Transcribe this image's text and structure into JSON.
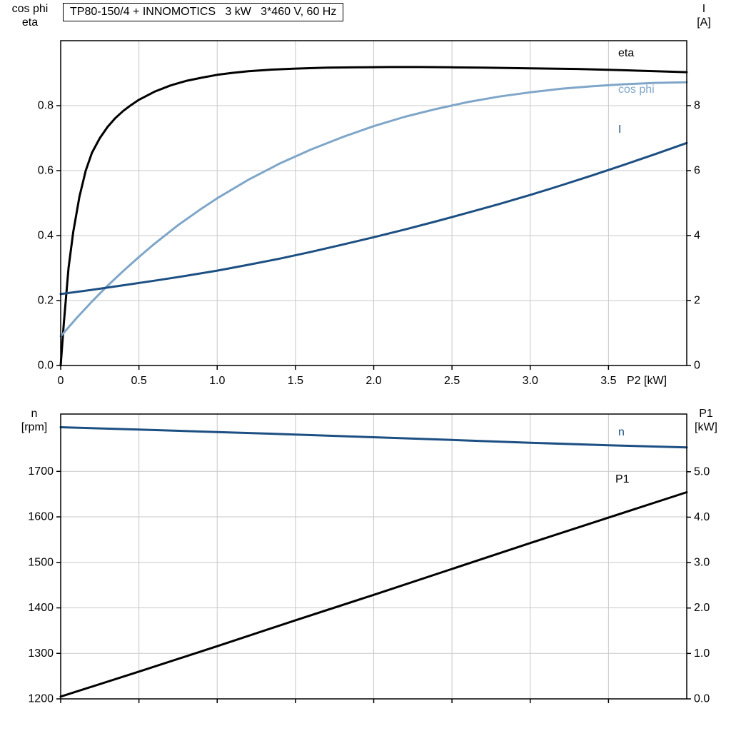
{
  "chart_data": [
    {
      "type": "line",
      "title": "TP80-150/4 + INNOMOTICS   3 kW   3*460 V, 60 Hz",
      "xlabel": "P2 [kW]",
      "ylabel_left_lines": [
        "cos phi",
        "eta"
      ],
      "ylabel_right_lines": [
        "I",
        "[A]"
      ],
      "xlim": [
        0,
        4
      ],
      "ylim_left": [
        0,
        1.0
      ],
      "ylim_right": [
        0,
        10
      ],
      "grid": true,
      "x_ticks": [
        {
          "v": 0,
          "label": "0"
        },
        {
          "v": 0.5,
          "label": "0.5"
        },
        {
          "v": 1.0,
          "label": "1.0"
        },
        {
          "v": 1.5,
          "label": "1.5"
        },
        {
          "v": 2.0,
          "label": "2.0"
        },
        {
          "v": 2.5,
          "label": "2.5"
        },
        {
          "v": 3.0,
          "label": "3.0"
        },
        {
          "v": 3.5,
          "label": "3.5"
        }
      ],
      "left_ticks": [
        {
          "v": 0.0,
          "label": "0.0"
        },
        {
          "v": 0.2,
          "label": "0.2"
        },
        {
          "v": 0.4,
          "label": "0.4"
        },
        {
          "v": 0.6,
          "label": "0.6"
        },
        {
          "v": 0.8,
          "label": "0.8"
        }
      ],
      "right_ticks": [
        {
          "v": 0,
          "label": "0"
        },
        {
          "v": 2,
          "label": "2"
        },
        {
          "v": 4,
          "label": "4"
        },
        {
          "v": 6,
          "label": "6"
        },
        {
          "v": 8,
          "label": "8"
        }
      ],
      "series": [
        {
          "name": "eta",
          "label": "eta",
          "color": "#000000",
          "axis": "left",
          "points": [
            [
              0,
              0
            ],
            [
              0.02,
              0.13
            ],
            [
              0.05,
              0.3
            ],
            [
              0.08,
              0.41
            ],
            [
              0.12,
              0.52
            ],
            [
              0.16,
              0.6
            ],
            [
              0.2,
              0.655
            ],
            [
              0.25,
              0.7
            ],
            [
              0.3,
              0.735
            ],
            [
              0.35,
              0.762
            ],
            [
              0.4,
              0.784
            ],
            [
              0.45,
              0.802
            ],
            [
              0.5,
              0.818
            ],
            [
              0.6,
              0.843
            ],
            [
              0.7,
              0.862
            ],
            [
              0.8,
              0.876
            ],
            [
              0.9,
              0.886
            ],
            [
              1.0,
              0.895
            ],
            [
              1.1,
              0.901
            ],
            [
              1.2,
              0.906
            ],
            [
              1.35,
              0.911
            ],
            [
              1.5,
              0.914
            ],
            [
              1.7,
              0.917
            ],
            [
              1.9,
              0.918
            ],
            [
              2.1,
              0.919
            ],
            [
              2.3,
              0.919
            ],
            [
              2.5,
              0.918
            ],
            [
              2.7,
              0.917
            ],
            [
              3.0,
              0.915
            ],
            [
              3.3,
              0.913
            ],
            [
              3.6,
              0.909
            ],
            [
              3.8,
              0.906
            ],
            [
              4.0,
              0.903
            ]
          ]
        },
        {
          "name": "cos_phi",
          "label": "cos phi",
          "color": "#7fa6c8",
          "axis": "left",
          "points": [
            [
              0,
              0.09
            ],
            [
              0.1,
              0.145
            ],
            [
              0.2,
              0.197
            ],
            [
              0.3,
              0.246
            ],
            [
              0.4,
              0.291
            ],
            [
              0.5,
              0.334
            ],
            [
              0.6,
              0.375
            ],
            [
              0.75,
              0.432
            ],
            [
              0.9,
              0.483
            ],
            [
              1.0,
              0.515
            ],
            [
              1.2,
              0.572
            ],
            [
              1.4,
              0.622
            ],
            [
              1.6,
              0.665
            ],
            [
              1.8,
              0.703
            ],
            [
              2.0,
              0.737
            ],
            [
              2.2,
              0.766
            ],
            [
              2.4,
              0.79
            ],
            [
              2.6,
              0.811
            ],
            [
              2.8,
              0.828
            ],
            [
              3.0,
              0.841
            ],
            [
              3.2,
              0.852
            ],
            [
              3.4,
              0.86
            ],
            [
              3.6,
              0.866
            ],
            [
              3.8,
              0.87
            ],
            [
              4.0,
              0.872
            ]
          ]
        },
        {
          "name": "current",
          "label": "I",
          "color": "#1c4f82",
          "axis": "right",
          "points": [
            [
              0,
              2.2
            ],
            [
              0.2,
              2.33
            ],
            [
              0.4,
              2.47
            ],
            [
              0.6,
              2.61
            ],
            [
              0.8,
              2.76
            ],
            [
              1.0,
              2.92
            ],
            [
              1.2,
              3.1
            ],
            [
              1.4,
              3.29
            ],
            [
              1.6,
              3.5
            ],
            [
              1.8,
              3.72
            ],
            [
              2.0,
              3.95
            ],
            [
              2.2,
              4.19
            ],
            [
              2.4,
              4.44
            ],
            [
              2.6,
              4.7
            ],
            [
              2.8,
              4.97
            ],
            [
              3.0,
              5.25
            ],
            [
              3.2,
              5.55
            ],
            [
              3.4,
              5.86
            ],
            [
              3.6,
              6.18
            ],
            [
              3.8,
              6.51
            ],
            [
              4.0,
              6.85
            ]
          ]
        }
      ]
    },
    {
      "type": "line",
      "title": "",
      "xlabel": "",
      "ylabel_left_lines": [
        "n",
        "[rpm]"
      ],
      "ylabel_right_lines": [
        "P1",
        "[kW]"
      ],
      "xlim": [
        0,
        4
      ],
      "ylim_left": [
        1200,
        1826
      ],
      "ylim_right": [
        0,
        6.27
      ],
      "grid": true,
      "x_ticks": [
        {
          "v": 0,
          "label": ""
        },
        {
          "v": 0.5,
          "label": ""
        },
        {
          "v": 1.0,
          "label": ""
        },
        {
          "v": 1.5,
          "label": ""
        },
        {
          "v": 2.0,
          "label": ""
        },
        {
          "v": 2.5,
          "label": ""
        },
        {
          "v": 3.0,
          "label": ""
        },
        {
          "v": 3.5,
          "label": ""
        }
      ],
      "left_ticks": [
        {
          "v": 1200,
          "label": "1200"
        },
        {
          "v": 1300,
          "label": "1300"
        },
        {
          "v": 1400,
          "label": "1400"
        },
        {
          "v": 1500,
          "label": "1500"
        },
        {
          "v": 1600,
          "label": "1600"
        },
        {
          "v": 1700,
          "label": "1700"
        }
      ],
      "right_ticks": [
        {
          "v": 0.0,
          "label": "0.0"
        },
        {
          "v": 1.0,
          "label": "1.0"
        },
        {
          "v": 2.0,
          "label": "2.0"
        },
        {
          "v": 3.0,
          "label": "3.0"
        },
        {
          "v": 4.0,
          "label": "4.0"
        },
        {
          "v": 5.0,
          "label": "5.0"
        }
      ],
      "series": [
        {
          "name": "speed",
          "label": "n",
          "color": "#1c4f82",
          "axis": "left",
          "points": [
            [
              0,
              1797
            ],
            [
              0.5,
              1792
            ],
            [
              1.0,
              1786.5
            ],
            [
              1.5,
              1781
            ],
            [
              2.0,
              1775
            ],
            [
              2.5,
              1769
            ],
            [
              3.0,
              1763
            ],
            [
              3.5,
              1757.5
            ],
            [
              4.0,
              1752.5
            ]
          ]
        },
        {
          "name": "P1",
          "label": "P1",
          "color": "#000000",
          "axis": "right",
          "points": [
            [
              0,
              0.05
            ],
            [
              0.5,
              0.6
            ],
            [
              1.0,
              1.16
            ],
            [
              1.5,
              1.73
            ],
            [
              2.0,
              2.29
            ],
            [
              2.5,
              2.86
            ],
            [
              3.0,
              3.43
            ],
            [
              3.5,
              3.99
            ],
            [
              4.0,
              4.55
            ]
          ]
        }
      ]
    }
  ]
}
